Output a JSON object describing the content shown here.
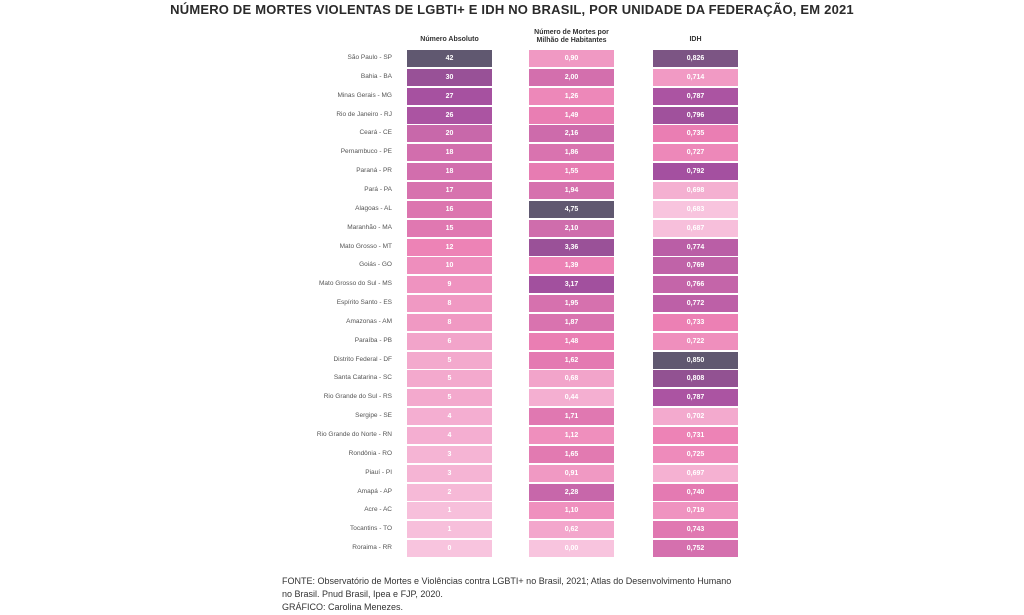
{
  "chart_data": {
    "type": "table",
    "title": "NÚMERO DE MORTES VIOLENTAS DE LGBTI+ E IDH NO BRASIL, POR UNIDADE DA FEDERAÇÃO, EM 2021",
    "columns": [
      "Número Absoluto",
      "Número de Mortes por Milhão de Habitantes",
      "IDH"
    ],
    "rows": [
      {
        "uf": "São Paulo - SP",
        "abs": "42",
        "rate": "0,90",
        "idh": "0,826"
      },
      {
        "uf": "Bahia - BA",
        "abs": "30",
        "rate": "2,00",
        "idh": "0,714"
      },
      {
        "uf": "Minas Gerais - MG",
        "abs": "27",
        "rate": "1,26",
        "idh": "0,787"
      },
      {
        "uf": "Rio de Janeiro - RJ",
        "abs": "26",
        "rate": "1,49",
        "idh": "0,796"
      },
      {
        "uf": "Ceará - CE",
        "abs": "20",
        "rate": "2,16",
        "idh": "0,735"
      },
      {
        "uf": "Pernambuco - PE",
        "abs": "18",
        "rate": "1,86",
        "idh": "0,727"
      },
      {
        "uf": "Paraná - PR",
        "abs": "18",
        "rate": "1,55",
        "idh": "0,792"
      },
      {
        "uf": "Pará - PA",
        "abs": "17",
        "rate": "1,94",
        "idh": "0,698"
      },
      {
        "uf": "Alagoas - AL",
        "abs": "16",
        "rate": "4,75",
        "idh": "0,683"
      },
      {
        "uf": "Maranhão - MA",
        "abs": "15",
        "rate": "2,10",
        "idh": "0,687"
      },
      {
        "uf": "Mato Grosso - MT",
        "abs": "12",
        "rate": "3,36",
        "idh": "0,774"
      },
      {
        "uf": "Goiás - GO",
        "abs": "10",
        "rate": "1,39",
        "idh": "0,769"
      },
      {
        "uf": "Mato Grosso do Sul - MS",
        "abs": "9",
        "rate": "3,17",
        "idh": "0,766"
      },
      {
        "uf": "Espírito Santo - ES",
        "abs": "8",
        "rate": "1,95",
        "idh": "0,772"
      },
      {
        "uf": "Amazonas - AM",
        "abs": "8",
        "rate": "1,87",
        "idh": "0,733"
      },
      {
        "uf": "Paraíba - PB",
        "abs": "6",
        "rate": "1,48",
        "idh": "0,722"
      },
      {
        "uf": "Distrito Federal - DF",
        "abs": "5",
        "rate": "1,62",
        "idh": "0,850"
      },
      {
        "uf": "Santa Catarina - SC",
        "abs": "5",
        "rate": "0,68",
        "idh": "0,808"
      },
      {
        "uf": "Rio Grande do Sul - RS",
        "abs": "5",
        "rate": "0,44",
        "idh": "0,787"
      },
      {
        "uf": "Sergipe - SE",
        "abs": "4",
        "rate": "1,71",
        "idh": "0,702"
      },
      {
        "uf": "Rio Grande do Norte - RN",
        "abs": "4",
        "rate": "1,12",
        "idh": "0,731"
      },
      {
        "uf": "Rondônia - RO",
        "abs": "3",
        "rate": "1,65",
        "idh": "0,725"
      },
      {
        "uf": "Piauí - PI",
        "abs": "3",
        "rate": "0,91",
        "idh": "0,697"
      },
      {
        "uf": "Amapá - AP",
        "abs": "2",
        "rate": "2,28",
        "idh": "0,740"
      },
      {
        "uf": "Acre - AC",
        "abs": "1",
        "rate": "1,10",
        "idh": "0,719"
      },
      {
        "uf": "Tocantins - TO",
        "abs": "1",
        "rate": "0,62",
        "idh": "0,743"
      },
      {
        "uf": "Roraima - RR",
        "abs": "0",
        "rate": "0,00",
        "idh": "0,752"
      }
    ]
  },
  "footer": {
    "line1": "FONTE: Observatório de Mortes e Violências contra LGBTI+ no Brasil, 2021; Atlas do Desenvolvimento Humano",
    "line2": "no Brasil. Pnud Brasil, Ipea e FJP, 2020.",
    "line3": "GRÁFICO: Carolina Menezes."
  }
}
